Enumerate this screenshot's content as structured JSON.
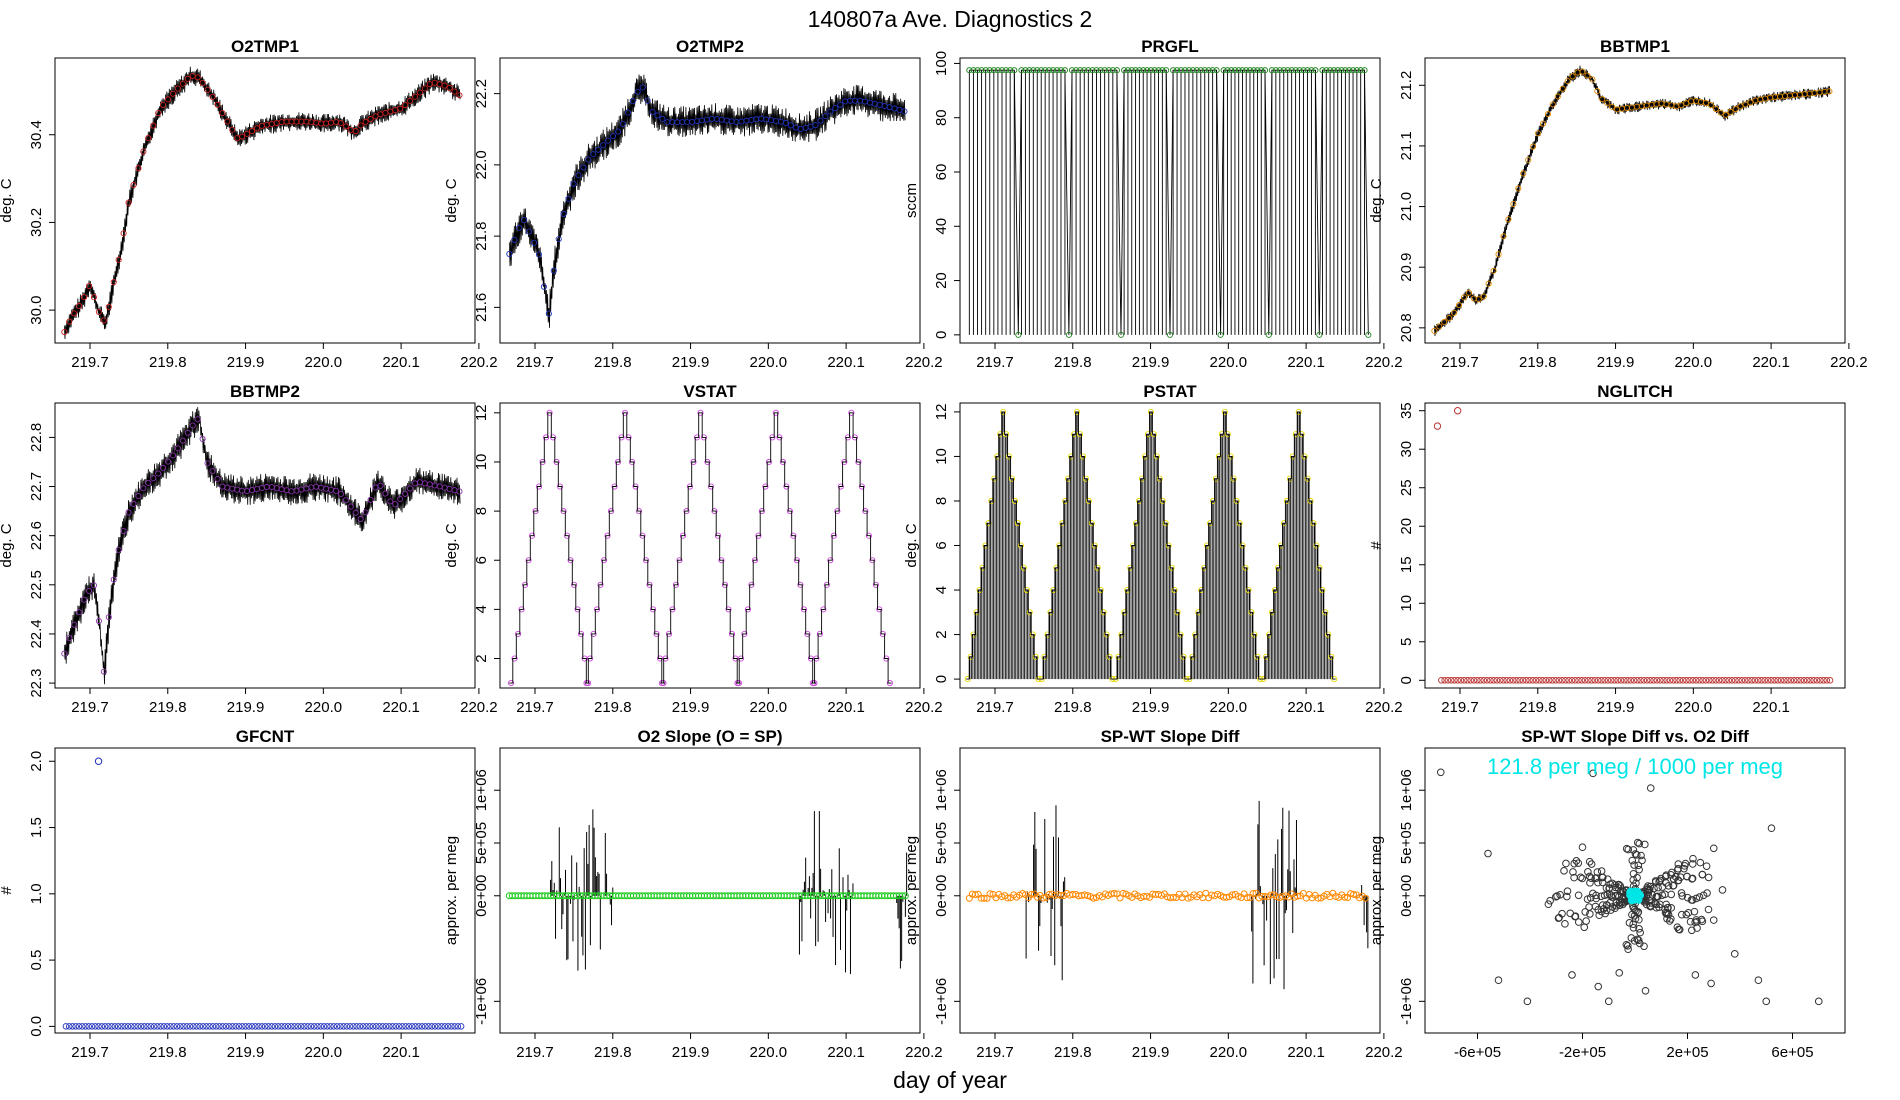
{
  "main_title": "140807a   Ave. Diagnostics 2",
  "x_axis_label": "day of year",
  "chart_data": [
    {
      "id": "o2tmp1",
      "type": "line",
      "title": "O2TMP1",
      "ylabel": "deg. C",
      "xlim": [
        219.655,
        220.195
      ],
      "ylim": [
        29.925,
        30.575
      ],
      "xticks": [
        "219.7",
        "219.8",
        "219.9",
        "220.0",
        "220.1",
        "220.2"
      ],
      "yticks": [
        "30.0",
        "30.2",
        "30.4"
      ],
      "color": "#cc2222",
      "x": [
        219.667,
        219.675,
        219.69,
        219.7,
        219.71,
        219.72,
        219.73,
        219.74,
        219.75,
        219.77,
        219.79,
        219.81,
        219.83,
        219.84,
        219.86,
        219.88,
        219.89,
        219.9,
        219.92,
        219.95,
        219.98,
        220.0,
        220.02,
        220.04,
        220.05,
        220.07,
        220.09,
        220.1,
        220.12,
        220.14,
        220.16,
        220.175
      ],
      "values": [
        29.95,
        29.98,
        30.02,
        30.06,
        30.0,
        29.97,
        30.06,
        30.14,
        30.25,
        30.37,
        30.46,
        30.5,
        30.535,
        30.53,
        30.48,
        30.42,
        30.39,
        30.4,
        30.42,
        30.43,
        30.43,
        30.425,
        30.43,
        30.405,
        30.425,
        30.445,
        30.455,
        30.46,
        30.49,
        30.52,
        30.51,
        30.49
      ],
      "noise": 0.015
    },
    {
      "id": "o2tmp2",
      "type": "line",
      "title": "O2TMP2",
      "ylabel": "deg. C",
      "xlim": [
        219.655,
        220.195
      ],
      "ylim": [
        21.5,
        22.3
      ],
      "xticks": [
        "219.7",
        "219.8",
        "219.9",
        "220.0",
        "220.1",
        "220.2"
      ],
      "yticks": [
        "21.6",
        "21.8",
        "22.0",
        "22.2"
      ],
      "color": "#2233bb",
      "x": [
        219.667,
        219.675,
        219.685,
        219.695,
        219.705,
        219.712,
        219.718,
        219.725,
        219.735,
        219.75,
        219.77,
        219.79,
        219.81,
        219.83,
        219.838,
        219.85,
        219.87,
        219.9,
        219.93,
        219.96,
        219.99,
        220.02,
        220.04,
        220.06,
        220.08,
        220.1,
        220.12,
        220.14,
        220.16,
        220.175
      ],
      "values": [
        21.75,
        21.8,
        21.85,
        21.8,
        21.75,
        21.65,
        21.58,
        21.72,
        21.85,
        21.95,
        22.02,
        22.06,
        22.1,
        22.2,
        22.22,
        22.15,
        22.12,
        22.12,
        22.13,
        22.12,
        22.13,
        22.12,
        22.1,
        22.11,
        22.15,
        22.18,
        22.18,
        22.17,
        22.16,
        22.15
      ],
      "noise": 0.03
    },
    {
      "id": "prgfl",
      "type": "line",
      "title": "PRGFL",
      "ylabel": "sccm",
      "xlim": [
        219.655,
        220.195
      ],
      "ylim": [
        -3,
        102
      ],
      "xticks": [
        "219.7",
        "219.8",
        "219.9",
        "220.0",
        "220.1",
        "220.2"
      ],
      "yticks": [
        "0",
        "20",
        "40",
        "60",
        "80",
        "100"
      ],
      "color": "#228822",
      "high": 97.5,
      "low": 0,
      "dips": [
        219.73,
        219.795,
        219.862,
        219.925,
        219.99,
        220.052,
        220.117,
        220.18
      ],
      "samples_per_segment": 12
    },
    {
      "id": "bbtmp1",
      "type": "line",
      "title": "BBTMP1",
      "ylabel": "deg. C",
      "xlim": [
        219.655,
        220.195
      ],
      "ylim": [
        20.775,
        21.245
      ],
      "xticks": [
        "219.7",
        "219.8",
        "219.9",
        "220.0",
        "220.1",
        "220.2"
      ],
      "yticks": [
        "20.8",
        "20.9",
        "21.0",
        "21.1",
        "21.2"
      ],
      "color": "#e08a00",
      "x": [
        219.667,
        219.68,
        219.69,
        219.7,
        219.71,
        219.72,
        219.73,
        219.745,
        219.76,
        219.78,
        219.8,
        219.82,
        219.84,
        219.855,
        219.87,
        219.88,
        219.9,
        219.93,
        219.96,
        219.98,
        220.0,
        220.02,
        220.04,
        220.06,
        220.08,
        220.1,
        220.14,
        220.175
      ],
      "values": [
        20.795,
        20.81,
        20.82,
        20.84,
        20.86,
        20.845,
        20.85,
        20.9,
        20.97,
        21.05,
        21.12,
        21.17,
        21.21,
        21.225,
        21.21,
        21.18,
        21.16,
        21.165,
        21.17,
        21.165,
        21.175,
        21.17,
        21.15,
        21.165,
        21.175,
        21.18,
        21.185,
        21.19
      ],
      "noise": 0.006
    },
    {
      "id": "bbtmp2",
      "type": "line",
      "title": "BBTMP2",
      "ylabel": "deg. C",
      "xlim": [
        219.655,
        220.195
      ],
      "ylim": [
        22.29,
        22.87
      ],
      "xticks": [
        "219.7",
        "219.8",
        "219.9",
        "220.0",
        "220.1",
        "220.2"
      ],
      "yticks": [
        "22.3",
        "22.4",
        "22.5",
        "22.6",
        "22.7",
        "22.8"
      ],
      "color": "#8833aa",
      "x": [
        219.667,
        219.675,
        219.685,
        219.695,
        219.705,
        219.712,
        219.718,
        219.725,
        219.735,
        219.75,
        219.77,
        219.79,
        219.81,
        219.83,
        219.84,
        219.85,
        219.87,
        219.9,
        219.93,
        219.96,
        219.99,
        220.02,
        220.04,
        220.05,
        220.07,
        220.09,
        220.12,
        220.15,
        220.175
      ],
      "values": [
        22.36,
        22.4,
        22.44,
        22.48,
        22.5,
        22.42,
        22.32,
        22.45,
        22.56,
        22.65,
        22.7,
        22.73,
        22.77,
        22.82,
        22.84,
        22.75,
        22.7,
        22.69,
        22.7,
        22.69,
        22.7,
        22.69,
        22.65,
        22.63,
        22.71,
        22.66,
        22.71,
        22.7,
        22.69
      ],
      "noise": 0.02
    },
    {
      "id": "vstat",
      "type": "step",
      "title": "VSTAT",
      "ylabel": "deg. C",
      "xlim": [
        219.655,
        220.195
      ],
      "ylim": [
        0.8,
        12.4
      ],
      "xticks": [
        "219.7",
        "219.8",
        "219.9",
        "220.0",
        "220.1",
        "220.2"
      ],
      "yticks": [
        "2",
        "4",
        "6",
        "8",
        "10",
        "12"
      ],
      "color": "#cc44dd",
      "levels": [
        1,
        2,
        3,
        4,
        5,
        6,
        7,
        8,
        9,
        10,
        11,
        12,
        11,
        10,
        9,
        8,
        7,
        6,
        5,
        4,
        3,
        2,
        1
      ],
      "cycle_starts": [
        219.667,
        219.764,
        219.861,
        219.958,
        220.055
      ],
      "step_width": 0.0045
    },
    {
      "id": "pstat",
      "type": "step",
      "title": "PSTAT",
      "ylabel": "deg. C",
      "xlim": [
        219.655,
        220.195
      ],
      "ylim": [
        -0.4,
        12.4
      ],
      "xticks": [
        "219.7",
        "219.8",
        "219.9",
        "220.0",
        "220.1",
        "220.2"
      ],
      "yticks": [
        "0",
        "2",
        "4",
        "6",
        "8",
        "10",
        "12"
      ],
      "color": "#e6d800",
      "levels": [
        0,
        1,
        2,
        3,
        4,
        5,
        6,
        7,
        8,
        9,
        10,
        11,
        12,
        11,
        10,
        9,
        8,
        7,
        6,
        5,
        4,
        3,
        2,
        1,
        0
      ],
      "cycle_starts": [
        219.663,
        219.758,
        219.853,
        219.948,
        220.043
      ],
      "step_width": 0.0038
    },
    {
      "id": "nglitch",
      "type": "scatter",
      "title": "NGLITCH",
      "ylabel": "#",
      "xlim": [
        219.655,
        220.195
      ],
      "ylim": [
        -1,
        36
      ],
      "xticks": [
        "219.7",
        "219.8",
        "219.9",
        "220.0",
        "220.1"
      ],
      "yticks": [
        "0",
        "5",
        "10",
        "15",
        "20",
        "25",
        "30",
        "35"
      ],
      "color": "#bb3333",
      "baseline": 0,
      "spikes": [
        [
          219.671,
          33
        ],
        [
          219.697,
          35
        ]
      ]
    },
    {
      "id": "gfcnt",
      "type": "scatter",
      "title": "GFCNT",
      "ylabel": "#",
      "xlim": [
        219.655,
        220.195
      ],
      "ylim": [
        -0.05,
        2.1
      ],
      "xticks": [
        "219.7",
        "219.8",
        "219.9",
        "220.0",
        "220.1"
      ],
      "yticks": [
        "0.0",
        "0.5",
        "1.0",
        "1.5",
        "2.0"
      ],
      "color": "#2233bb",
      "baseline": 0,
      "spikes": [
        [
          219.711,
          2.0
        ]
      ]
    },
    {
      "id": "o2slope",
      "type": "line",
      "title": "O2 Slope (O = SP)",
      "ylabel": "approx. per meg",
      "xlim": [
        219.655,
        220.195
      ],
      "ylim": [
        -1300000,
        1400000
      ],
      "xticks": [
        "219.7",
        "219.8",
        "219.9",
        "220.0",
        "220.1",
        "220.2"
      ],
      "yticks": [
        "-1e+06",
        "0e+00",
        "5e+05",
        "1e+06"
      ],
      "color": "#22cc22",
      "baseline": 0,
      "burst_ranges": [
        [
          219.72,
          219.8
        ],
        [
          220.04,
          220.11
        ],
        [
          220.165,
          220.18
        ]
      ],
      "burst_amplitude": 850000
    },
    {
      "id": "spwt",
      "type": "line",
      "title": "SP-WT Slope Diff",
      "ylabel": "approx. per meg",
      "xlim": [
        219.655,
        220.195
      ],
      "ylim": [
        -1300000,
        1400000
      ],
      "xticks": [
        "219.7",
        "219.8",
        "219.9",
        "220.0",
        "220.1",
        "220.2"
      ],
      "yticks": [
        "-1e+06",
        "0e+00",
        "5e+05",
        "1e+06"
      ],
      "color": "#ff8800",
      "baseline": 0,
      "burst_ranges": [
        [
          219.74,
          219.79
        ],
        [
          220.03,
          220.09
        ],
        [
          220.165,
          220.18
        ]
      ],
      "burst_amplitude": 900000
    },
    {
      "id": "spwt_vs_o2",
      "type": "scatter",
      "title": "SP-WT Slope Diff vs. O2 Diff",
      "ylabel": "approx. per meg",
      "xlim": [
        -800000,
        800000
      ],
      "ylim": [
        -1300000,
        1400000
      ],
      "xticks": [
        "-6e+05",
        "-2e+05",
        "2e+05",
        "6e+05"
      ],
      "yticks": [
        "-1e+06",
        "0e+00",
        "5e+05",
        "1e+06"
      ],
      "color": "#333333",
      "fit_color": "#00e6e6",
      "annotation": "121.8 per meg / 1000 per meg"
    }
  ]
}
